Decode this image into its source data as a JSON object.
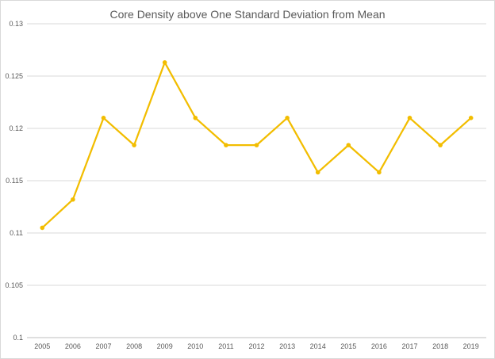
{
  "chart_data": {
    "type": "line",
    "title": "Core Density above One Standard Deviation from Mean",
    "xlabel": "",
    "ylabel": "",
    "categories": [
      "2005",
      "2006",
      "2007",
      "2008",
      "2009",
      "2010",
      "2011",
      "2012",
      "2013",
      "2014",
      "2015",
      "2016",
      "2017",
      "2018",
      "2019"
    ],
    "series": [
      {
        "values": [
          0.1105,
          0.1132,
          0.121,
          0.1184,
          0.1263,
          0.121,
          0.1184,
          0.1184,
          0.121,
          0.1158,
          0.1184,
          0.1158,
          0.121,
          0.1184,
          0.121
        ],
        "color": "#f2bd00"
      }
    ],
    "ylim": [
      0.1,
      0.13
    ],
    "yticks": [
      "0.1",
      "0.105",
      "0.11",
      "0.115",
      "0.12",
      "0.125",
      "0.13"
    ],
    "grid": "horizontal",
    "legend": "none"
  }
}
